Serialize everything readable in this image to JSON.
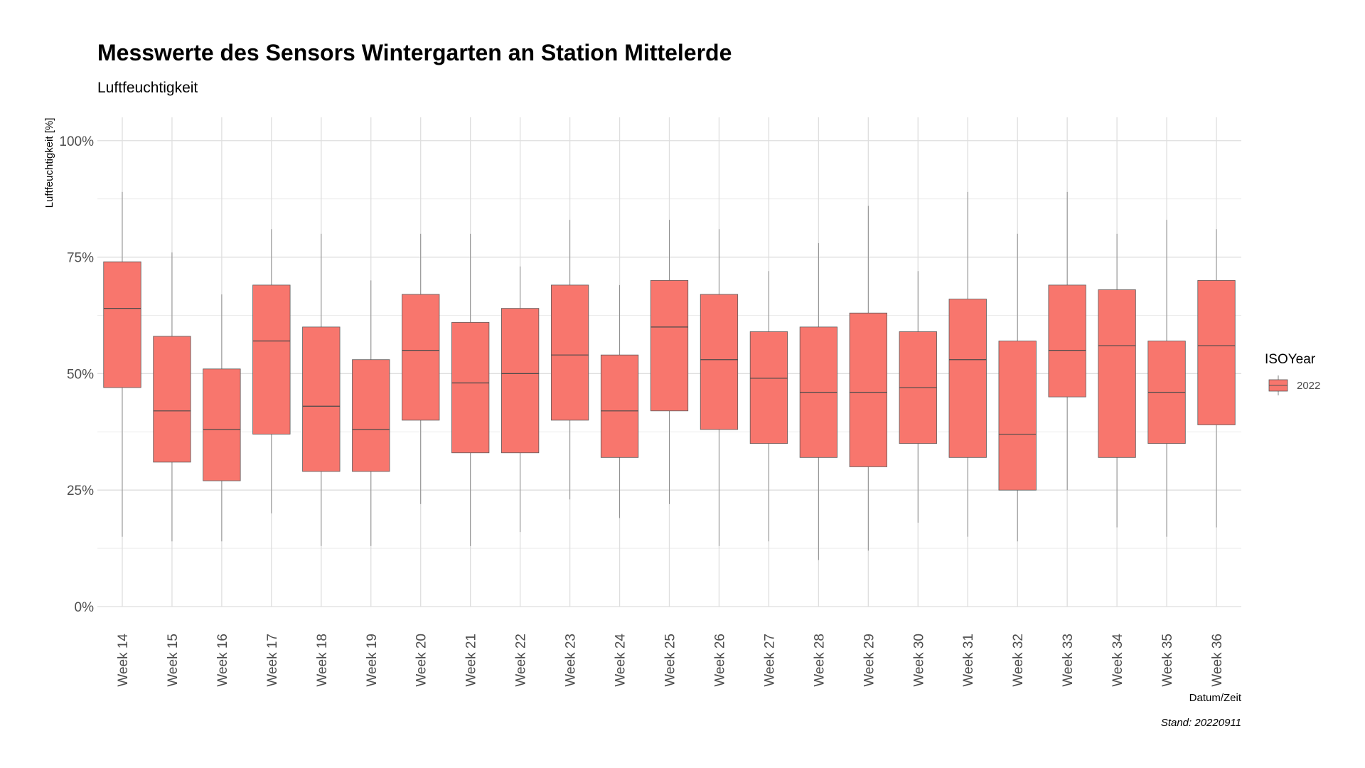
{
  "chart_data": {
    "type": "boxplot",
    "title": "Messwerte des Sensors Wintergarten an Station Mittelerde",
    "subtitle": "Luftfeuchtigkeit",
    "xlabel": "Datum/Zeit",
    "ylabel": "Luftfeuchtigkeit [%]",
    "caption": "Stand: 20220911",
    "ylim": [
      0,
      105
    ],
    "yticks": [
      0,
      25,
      50,
      75,
      100
    ],
    "ytick_labels": [
      "0%",
      "25%",
      "50%",
      "75%",
      "100%"
    ],
    "grid": true,
    "fill_color": "#F8766D",
    "legend": {
      "title": "ISOYear",
      "entries": [
        "2022"
      ],
      "position": "right"
    },
    "categories": [
      "Week 14",
      "Week 15",
      "Week 16",
      "Week 17",
      "Week 18",
      "Week 19",
      "Week 20",
      "Week 21",
      "Week 22",
      "Week 23",
      "Week 24",
      "Week 25",
      "Week 26",
      "Week 27",
      "Week 28",
      "Week 29",
      "Week 30",
      "Week 31",
      "Week 32",
      "Week 33",
      "Week 34",
      "Week 35",
      "Week 36"
    ],
    "boxes": [
      {
        "min": 15,
        "q1": 47,
        "median": 64,
        "q3": 74,
        "max": 89
      },
      {
        "min": 14,
        "q1": 31,
        "median": 42,
        "q3": 58,
        "max": 76
      },
      {
        "min": 14,
        "q1": 27,
        "median": 38,
        "q3": 51,
        "max": 67
      },
      {
        "min": 20,
        "q1": 37,
        "median": 57,
        "q3": 69,
        "max": 81
      },
      {
        "min": 13,
        "q1": 29,
        "median": 43,
        "q3": 60,
        "max": 80
      },
      {
        "min": 13,
        "q1": 29,
        "median": 38,
        "q3": 53,
        "max": 70
      },
      {
        "min": 22,
        "q1": 40,
        "median": 55,
        "q3": 67,
        "max": 80
      },
      {
        "min": 13,
        "q1": 33,
        "median": 48,
        "q3": 61,
        "max": 80
      },
      {
        "min": 16,
        "q1": 33,
        "median": 50,
        "q3": 64,
        "max": 73
      },
      {
        "min": 23,
        "q1": 40,
        "median": 54,
        "q3": 69,
        "max": 83
      },
      {
        "min": 19,
        "q1": 32,
        "median": 42,
        "q3": 54,
        "max": 69
      },
      {
        "min": 22,
        "q1": 42,
        "median": 60,
        "q3": 70,
        "max": 83
      },
      {
        "min": 13,
        "q1": 38,
        "median": 53,
        "q3": 67,
        "max": 81
      },
      {
        "min": 14,
        "q1": 35,
        "median": 49,
        "q3": 59,
        "max": 72
      },
      {
        "min": 10,
        "q1": 32,
        "median": 46,
        "q3": 60,
        "max": 78
      },
      {
        "min": 12,
        "q1": 30,
        "median": 46,
        "q3": 63,
        "max": 86
      },
      {
        "min": 18,
        "q1": 35,
        "median": 47,
        "q3": 59,
        "max": 72
      },
      {
        "min": 15,
        "q1": 32,
        "median": 53,
        "q3": 66,
        "max": 89
      },
      {
        "min": 14,
        "q1": 25,
        "median": 37,
        "q3": 57,
        "max": 80
      },
      {
        "min": 25,
        "q1": 45,
        "median": 55,
        "q3": 69,
        "max": 89
      },
      {
        "min": 17,
        "q1": 32,
        "median": 56,
        "q3": 68,
        "max": 80
      },
      {
        "min": 15,
        "q1": 35,
        "median": 46,
        "q3": 57,
        "max": 83
      },
      {
        "min": 17,
        "q1": 39,
        "median": 56,
        "q3": 70,
        "max": 81
      }
    ]
  }
}
